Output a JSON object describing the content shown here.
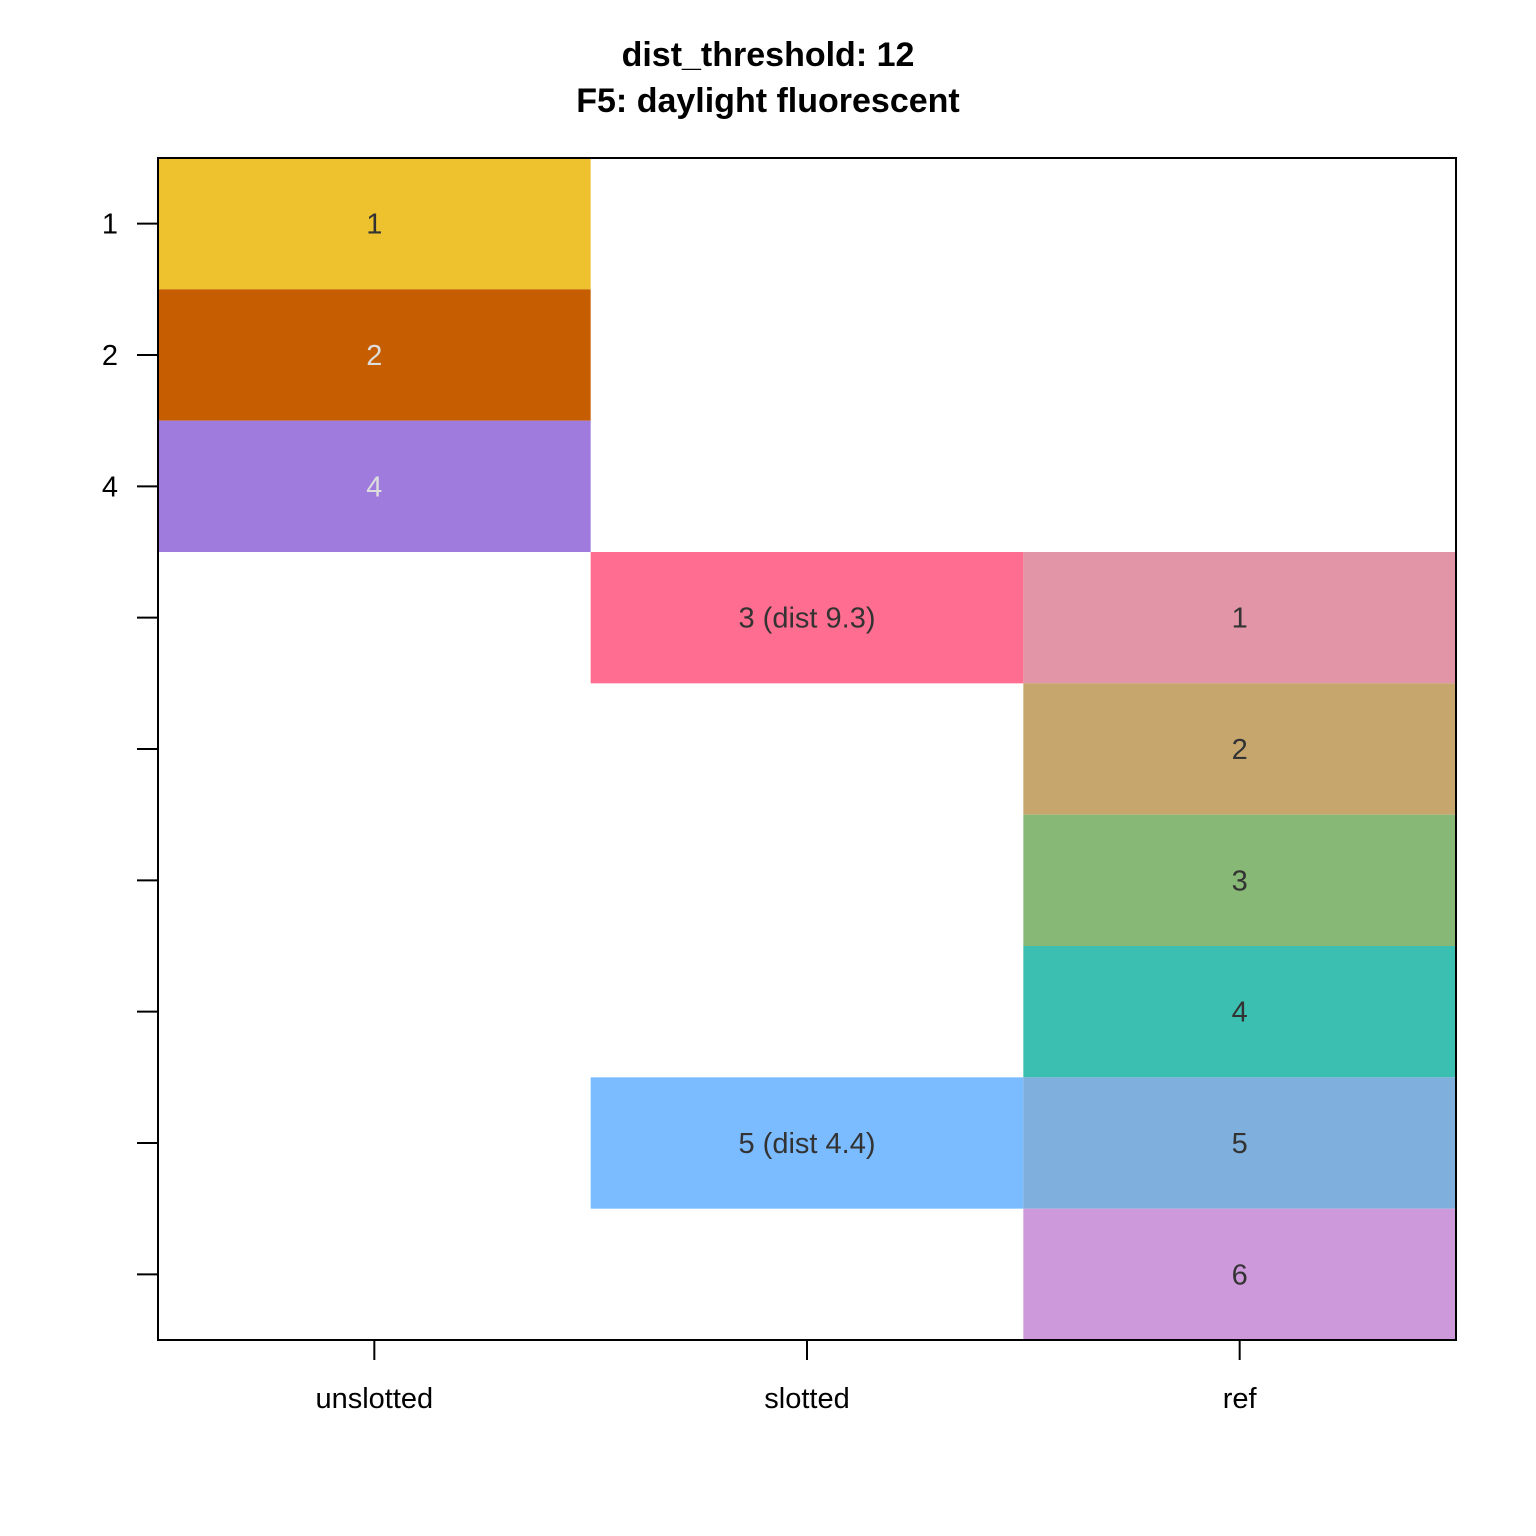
{
  "chart_data": {
    "type": "table",
    "title": "dist_threshold: 12",
    "subtitle": "F5: daylight fluorescent",
    "columns": [
      "unslotted",
      "slotted",
      "ref"
    ],
    "row_tick_labels": [
      "1",
      "2",
      "4",
      "",
      "",
      "",
      "",
      "",
      ""
    ],
    "row_count": 9,
    "cells": [
      {
        "col": 0,
        "row": 0,
        "label": "1",
        "color": "#EEC22F",
        "text_color": "#333333"
      },
      {
        "col": 0,
        "row": 1,
        "label": "2",
        "color": "#C65D00",
        "text_color": "#DDDDDD"
      },
      {
        "col": 0,
        "row": 2,
        "label": "4",
        "color": "#9F7BDD",
        "text_color": "#DDDDDD"
      },
      {
        "col": 1,
        "row": 3,
        "label": "3 (dist 9.3)",
        "color": "#FF6E90",
        "text_color": "#333333"
      },
      {
        "col": 1,
        "row": 7,
        "label": "5 (dist 4.4)",
        "color": "#7BBBFF",
        "text_color": "#333333"
      },
      {
        "col": 2,
        "row": 3,
        "label": "1",
        "color": "#E295A6",
        "text_color": "#333333"
      },
      {
        "col": 2,
        "row": 4,
        "label": "2",
        "color": "#C7A66D",
        "text_color": "#333333"
      },
      {
        "col": 2,
        "row": 5,
        "label": "3",
        "color": "#88B875",
        "text_color": "#333333"
      },
      {
        "col": 2,
        "row": 6,
        "label": "4",
        "color": "#3BBFB1",
        "text_color": "#333333"
      },
      {
        "col": 2,
        "row": 7,
        "label": "5",
        "color": "#7FB0DD",
        "text_color": "#333333"
      },
      {
        "col": 2,
        "row": 8,
        "label": "6",
        "color": "#CD99DA",
        "text_color": "#333333"
      }
    ]
  }
}
